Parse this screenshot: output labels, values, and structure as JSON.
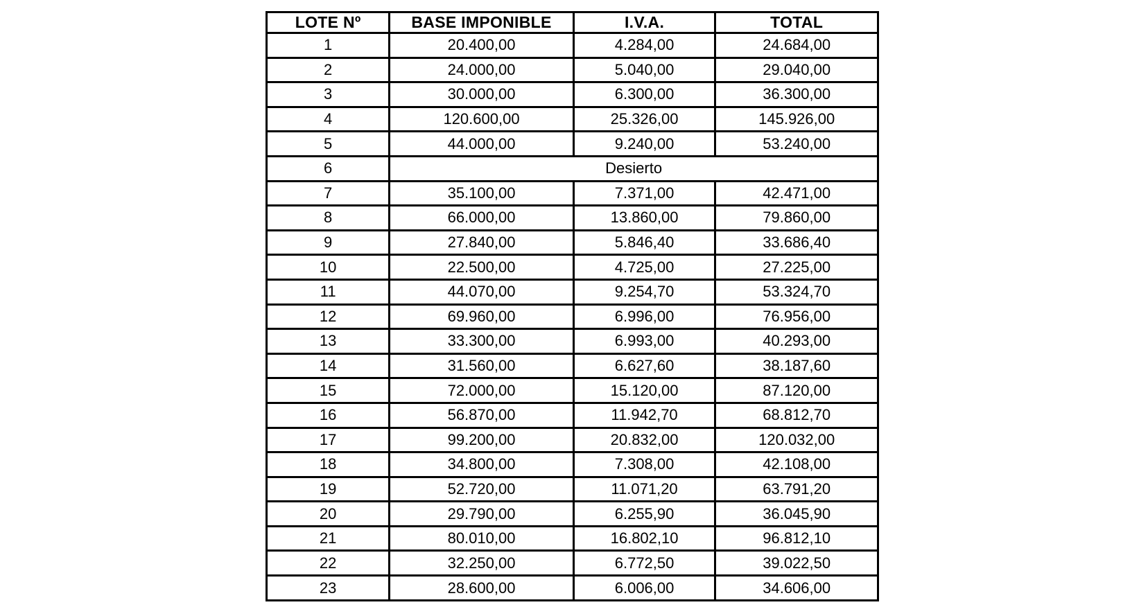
{
  "document": {
    "background_color": "#ffffff",
    "text_color": "#000000",
    "border_color": "#000000"
  },
  "table": {
    "headers": [
      "LOTE Nº",
      "BASE IMPONIBLE",
      "I.V.A.",
      "TOTAL"
    ],
    "rows": [
      {
        "lote": "1",
        "base": "20.400,00",
        "iva": "4.284,00",
        "total": "24.684,00"
      },
      {
        "lote": "2",
        "base": "24.000,00",
        "iva": "5.040,00",
        "total": "29.040,00"
      },
      {
        "lote": "3",
        "base": "30.000,00",
        "iva": "6.300,00",
        "total": "36.300,00"
      },
      {
        "lote": "4",
        "base": "120.600,00",
        "iva": "25.326,00",
        "total": "145.926,00"
      },
      {
        "lote": "5",
        "base": "44.000,00",
        "iva": "9.240,00",
        "total": "53.240,00"
      },
      {
        "lote": "6",
        "desierto": "Desierto"
      },
      {
        "lote": "7",
        "base": "35.100,00",
        "iva": "7.371,00",
        "total": "42.471,00"
      },
      {
        "lote": "8",
        "base": "66.000,00",
        "iva": "13.860,00",
        "total": "79.860,00"
      },
      {
        "lote": "9",
        "base": "27.840,00",
        "iva": "5.846,40",
        "total": "33.686,40"
      },
      {
        "lote": "10",
        "base": "22.500,00",
        "iva": "4.725,00",
        "total": "27.225,00"
      },
      {
        "lote": "11",
        "base": "44.070,00",
        "iva": "9.254,70",
        "total": "53.324,70"
      },
      {
        "lote": "12",
        "base": "69.960,00",
        "iva": "6.996,00",
        "total": "76.956,00"
      },
      {
        "lote": "13",
        "base": "33.300,00",
        "iva": "6.993,00",
        "total": "40.293,00"
      },
      {
        "lote": "14",
        "base": "31.560,00",
        "iva": "6.627,60",
        "total": "38.187,60"
      },
      {
        "lote": "15",
        "base": "72.000,00",
        "iva": "15.120,00",
        "total": "87.120,00"
      },
      {
        "lote": "16",
        "base": "56.870,00",
        "iva": "11.942,70",
        "total": "68.812,70"
      },
      {
        "lote": "17",
        "base": "99.200,00",
        "iva": "20.832,00",
        "total": "120.032,00"
      },
      {
        "lote": "18",
        "base": "34.800,00",
        "iva": "7.308,00",
        "total": "42.108,00"
      },
      {
        "lote": "19",
        "base": "52.720,00",
        "iva": "11.071,20",
        "total": "63.791,20"
      },
      {
        "lote": "20",
        "base": "29.790,00",
        "iva": "6.255,90",
        "total": "36.045,90"
      },
      {
        "lote": "21",
        "base": "80.010,00",
        "iva": "16.802,10",
        "total": "96.812,10"
      },
      {
        "lote": "22",
        "base": "32.250,00",
        "iva": "6.772,50",
        "total": "39.022,50"
      },
      {
        "lote": "23",
        "base": "28.600,00",
        "iva": "6.006,00",
        "total": "34.606,00"
      }
    ]
  }
}
